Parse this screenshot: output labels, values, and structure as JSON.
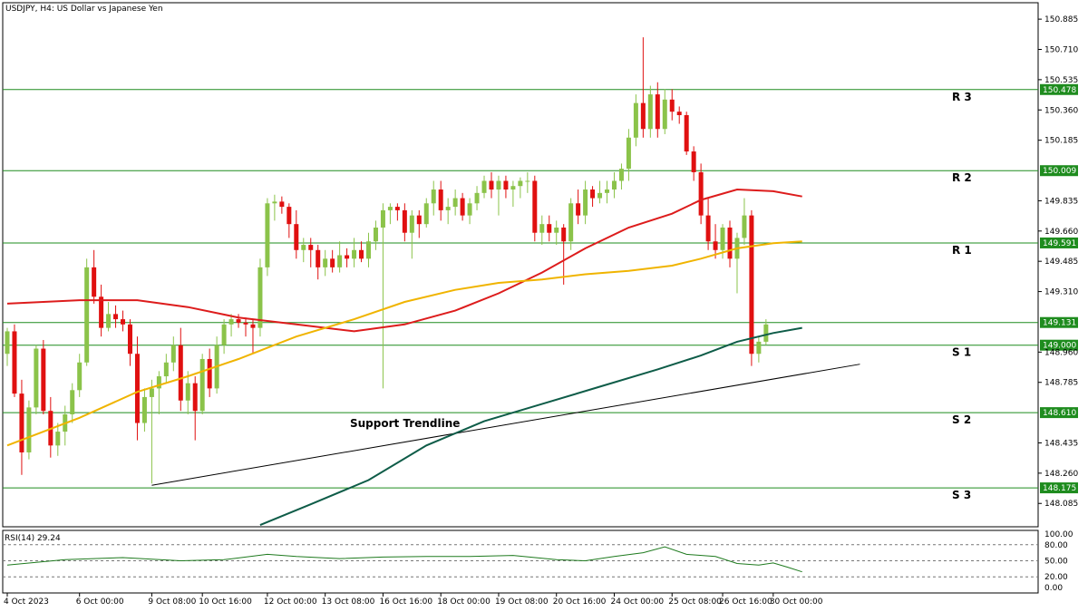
{
  "header": {
    "symbol_text": "USDJPY, H4:  US Dollar vs Japanese Yen"
  },
  "rsi": {
    "label": "RSI(14) 29.24",
    "ticks": [
      "100.00",
      "80.00",
      "50.00",
      "20.00",
      "0.00"
    ]
  },
  "price_ticks": [
    "150.885",
    "150.710",
    "150.535",
    "150.360",
    "150.185",
    "149.835",
    "149.660",
    "149.485",
    "149.310",
    "148.960",
    "148.785",
    "148.435",
    "148.260",
    "148.085"
  ],
  "time_ticks": [
    "4 Oct 2023",
    "6 Oct 00:00",
    "9 Oct 08:00",
    "10 Oct 16:00",
    "12 Oct 00:00",
    "13 Oct 08:00",
    "16 Oct 16:00",
    "18 Oct 00:00",
    "19 Oct 08:00",
    "20 Oct 16:00",
    "24 Oct 00:00",
    "25 Oct 08:00",
    "26 Oct 16:00",
    "30 Oct 00:00"
  ],
  "annotation": "Support Trendline",
  "colors": {
    "bull": "#8bc34a",
    "bear": "#e01010",
    "level": "#1e8c1e",
    "ma_fast": "#dd1c1c",
    "ma_mid": "#f0b400",
    "ma_slow": "#0e5c48"
  },
  "chart_data": {
    "type": "candlestick",
    "title": "USDJPY, H4:  US Dollar vs Japanese Yen",
    "ylim": [
      147.95,
      150.98
    ],
    "levels": [
      {
        "name": "R 3",
        "value": 150.478
      },
      {
        "name": "R 2",
        "value": 150.009
      },
      {
        "name": "R 1",
        "value": 149.591
      },
      {
        "name": "",
        "value": 149.131
      },
      {
        "name": "S 1",
        "value": 149.0
      },
      {
        "name": "S 2",
        "value": 148.61
      },
      {
        "name": "S 3",
        "value": 148.175
      }
    ],
    "level_labels": [
      "150.478",
      "150.009",
      "149.591",
      "149.131",
      "149.000",
      "148.610",
      "148.175"
    ],
    "trendline": {
      "start": {
        "i": 20,
        "value": 148.19
      },
      "end": {
        "i": 118,
        "value": 148.89
      }
    },
    "ohlc": [
      [
        148.95,
        149.1,
        148.88,
        149.08
      ],
      [
        149.08,
        149.12,
        148.7,
        148.72
      ],
      [
        148.72,
        148.8,
        148.25,
        148.38
      ],
      [
        148.38,
        148.68,
        148.34,
        148.64
      ],
      [
        148.64,
        149.0,
        148.6,
        148.98
      ],
      [
        148.98,
        149.03,
        148.6,
        148.62
      ],
      [
        148.62,
        148.7,
        148.35,
        148.42
      ],
      [
        148.42,
        148.55,
        148.36,
        148.5
      ],
      [
        148.5,
        148.65,
        148.42,
        148.6
      ],
      [
        148.6,
        148.78,
        148.55,
        148.74
      ],
      [
        148.74,
        148.95,
        148.7,
        148.9
      ],
      [
        148.9,
        149.5,
        148.88,
        149.45
      ],
      [
        149.45,
        149.55,
        149.24,
        149.28
      ],
      [
        149.28,
        149.35,
        149.05,
        149.1
      ],
      [
        149.1,
        149.25,
        149.08,
        149.18
      ],
      [
        149.18,
        149.23,
        149.1,
        149.15
      ],
      [
        149.15,
        149.2,
        149.08,
        149.12
      ],
      [
        149.12,
        149.15,
        148.88,
        148.95
      ],
      [
        148.95,
        149.05,
        148.45,
        148.55
      ],
      [
        148.55,
        148.75,
        148.5,
        148.7
      ],
      [
        148.7,
        148.8,
        148.2,
        148.75
      ],
      [
        148.75,
        148.85,
        148.6,
        148.82
      ],
      [
        148.82,
        148.95,
        148.78,
        148.9
      ],
      [
        148.9,
        149.05,
        148.85,
        149.0
      ],
      [
        149.0,
        149.1,
        148.62,
        148.68
      ],
      [
        148.68,
        148.85,
        148.6,
        148.78
      ],
      [
        148.78,
        148.82,
        148.45,
        148.62
      ],
      [
        148.62,
        148.95,
        148.6,
        148.92
      ],
      [
        148.92,
        148.98,
        148.7,
        148.75
      ],
      [
        148.75,
        149.05,
        148.72,
        149.0
      ],
      [
        149.0,
        149.15,
        148.95,
        149.12
      ],
      [
        149.12,
        149.18,
        149.05,
        149.15
      ],
      [
        149.15,
        149.18,
        149.1,
        149.13
      ],
      [
        149.13,
        149.16,
        149.05,
        149.12
      ],
      [
        149.12,
        149.15,
        148.95,
        149.1
      ],
      [
        149.1,
        149.5,
        149.05,
        149.45
      ],
      [
        149.45,
        149.85,
        149.4,
        149.82
      ],
      [
        149.82,
        149.87,
        149.72,
        149.83
      ],
      [
        149.83,
        149.86,
        149.76,
        149.8
      ],
      [
        149.8,
        149.82,
        149.62,
        149.7
      ],
      [
        149.7,
        149.78,
        149.5,
        149.55
      ],
      [
        149.55,
        149.62,
        149.48,
        149.58
      ],
      [
        149.58,
        149.62,
        149.45,
        149.55
      ],
      [
        149.55,
        149.58,
        149.38,
        149.45
      ],
      [
        149.45,
        149.55,
        149.4,
        149.5
      ],
      [
        149.5,
        149.55,
        149.42,
        149.45
      ],
      [
        149.45,
        149.6,
        149.42,
        149.52
      ],
      [
        149.52,
        149.56,
        149.45,
        149.5
      ],
      [
        149.5,
        149.62,
        149.45,
        149.55
      ],
      [
        149.55,
        149.6,
        149.48,
        149.5
      ],
      [
        149.5,
        149.65,
        149.45,
        149.6
      ],
      [
        149.6,
        149.72,
        149.55,
        149.68
      ],
      [
        149.68,
        149.82,
        148.75,
        149.78
      ],
      [
        149.78,
        149.82,
        149.7,
        149.8
      ],
      [
        149.8,
        149.82,
        149.72,
        149.78
      ],
      [
        149.78,
        149.82,
        149.6,
        149.65
      ],
      [
        149.65,
        149.78,
        149.5,
        149.75
      ],
      [
        149.75,
        149.78,
        149.62,
        149.7
      ],
      [
        149.7,
        149.85,
        149.68,
        149.82
      ],
      [
        149.82,
        149.95,
        149.75,
        149.9
      ],
      [
        149.9,
        149.95,
        149.72,
        149.78
      ],
      [
        149.78,
        149.85,
        149.7,
        149.8
      ],
      [
        149.8,
        149.9,
        149.75,
        149.85
      ],
      [
        149.85,
        149.88,
        149.72,
        149.75
      ],
      [
        149.75,
        149.85,
        149.7,
        149.82
      ],
      [
        149.82,
        149.92,
        149.78,
        149.88
      ],
      [
        149.88,
        149.98,
        149.85,
        149.95
      ],
      [
        149.95,
        150.0,
        149.85,
        149.9
      ],
      [
        149.9,
        149.98,
        149.75,
        149.95
      ],
      [
        149.95,
        149.98,
        149.85,
        149.9
      ],
      [
        149.9,
        149.95,
        149.8,
        149.92
      ],
      [
        149.92,
        149.97,
        149.85,
        149.95
      ],
      [
        149.95,
        150.0,
        149.88,
        149.95
      ],
      [
        149.95,
        149.98,
        149.6,
        149.65
      ],
      [
        149.65,
        149.75,
        149.58,
        149.7
      ],
      [
        149.7,
        149.75,
        149.6,
        149.65
      ],
      [
        149.65,
        149.72,
        149.58,
        149.68
      ],
      [
        149.68,
        149.7,
        149.35,
        149.6
      ],
      [
        149.6,
        149.85,
        149.55,
        149.82
      ],
      [
        149.82,
        149.9,
        149.7,
        149.75
      ],
      [
        149.75,
        149.95,
        149.7,
        149.9
      ],
      [
        149.9,
        149.92,
        149.8,
        149.85
      ],
      [
        149.85,
        149.95,
        149.82,
        149.88
      ],
      [
        149.88,
        149.95,
        149.82,
        149.9
      ],
      [
        149.9,
        150.0,
        149.85,
        149.95
      ],
      [
        149.95,
        150.05,
        149.9,
        150.02
      ],
      [
        150.02,
        150.25,
        149.95,
        150.2
      ],
      [
        150.2,
        150.45,
        150.15,
        150.4
      ],
      [
        150.4,
        150.78,
        150.2,
        150.25
      ],
      [
        150.25,
        150.5,
        150.2,
        150.45
      ],
      [
        150.45,
        150.52,
        150.2,
        150.25
      ],
      [
        150.25,
        150.48,
        150.22,
        150.42
      ],
      [
        150.42,
        150.48,
        150.3,
        150.35
      ],
      [
        150.35,
        150.38,
        150.28,
        150.33
      ],
      [
        150.33,
        150.35,
        150.1,
        150.12
      ],
      [
        150.12,
        150.15,
        149.95,
        150.0
      ],
      [
        150.0,
        150.05,
        149.7,
        149.75
      ],
      [
        149.75,
        149.85,
        149.55,
        149.6
      ],
      [
        149.6,
        149.7,
        149.5,
        149.55
      ],
      [
        149.55,
        149.7,
        149.5,
        149.68
      ],
      [
        149.68,
        149.72,
        149.45,
        149.5
      ],
      [
        149.5,
        149.65,
        149.3,
        149.62
      ],
      [
        149.62,
        149.85,
        149.58,
        149.75
      ],
      [
        149.75,
        149.78,
        148.88,
        148.95
      ],
      [
        148.95,
        149.05,
        148.9,
        149.02
      ],
      [
        149.02,
        149.15,
        149.0,
        149.12
      ]
    ],
    "moving_averages": [
      {
        "color": "#dd1c1c",
        "points": [
          [
            0,
            149.24
          ],
          [
            10,
            149.26
          ],
          [
            18,
            149.26
          ],
          [
            25,
            149.22
          ],
          [
            32,
            149.16
          ],
          [
            40,
            149.12
          ],
          [
            48,
            149.08
          ],
          [
            55,
            149.12
          ],
          [
            62,
            149.2
          ],
          [
            68,
            149.3
          ],
          [
            74,
            149.42
          ],
          [
            80,
            149.56
          ],
          [
            86,
            149.68
          ],
          [
            92,
            149.76
          ],
          [
            96,
            149.84
          ],
          [
            101,
            149.9
          ],
          [
            106,
            149.89
          ],
          [
            110,
            149.86
          ]
        ]
      },
      {
        "color": "#f0b400",
        "points": [
          [
            0,
            148.42
          ],
          [
            10,
            148.58
          ],
          [
            18,
            148.73
          ],
          [
            25,
            148.82
          ],
          [
            32,
            148.92
          ],
          [
            40,
            149.05
          ],
          [
            48,
            149.15
          ],
          [
            55,
            149.25
          ],
          [
            62,
            149.32
          ],
          [
            68,
            149.36
          ],
          [
            74,
            149.38
          ],
          [
            80,
            149.41
          ],
          [
            86,
            149.43
          ],
          [
            92,
            149.46
          ],
          [
            96,
            149.5
          ],
          [
            101,
            149.56
          ],
          [
            106,
            149.59
          ],
          [
            110,
            149.6
          ]
        ]
      },
      {
        "color": "#0e5c48",
        "points": [
          [
            35,
            147.96
          ],
          [
            42,
            148.08
          ],
          [
            50,
            148.22
          ],
          [
            58,
            148.42
          ],
          [
            66,
            148.56
          ],
          [
            74,
            148.66
          ],
          [
            82,
            148.76
          ],
          [
            90,
            148.86
          ],
          [
            96,
            148.94
          ],
          [
            101,
            149.02
          ],
          [
            106,
            149.07
          ],
          [
            110,
            149.1
          ]
        ]
      }
    ],
    "rsi": {
      "range": [
        0,
        100
      ],
      "reference_lines": [
        80,
        50,
        20
      ],
      "points": [
        [
          0,
          42
        ],
        [
          8,
          52
        ],
        [
          16,
          56
        ],
        [
          24,
          50
        ],
        [
          30,
          52
        ],
        [
          36,
          62
        ],
        [
          40,
          58
        ],
        [
          46,
          54
        ],
        [
          52,
          57
        ],
        [
          58,
          58
        ],
        [
          64,
          58
        ],
        [
          70,
          60
        ],
        [
          76,
          52
        ],
        [
          80,
          50
        ],
        [
          84,
          58
        ],
        [
          88,
          65
        ],
        [
          91,
          76
        ],
        [
          94,
          62
        ],
        [
          98,
          58
        ],
        [
          101,
          45
        ],
        [
          104,
          42
        ],
        [
          106,
          46
        ],
        [
          108,
          38
        ],
        [
          110,
          29.24
        ]
      ]
    },
    "time_ticks_index": [
      0,
      10,
      20,
      27,
      36,
      44,
      52,
      60,
      68,
      76,
      84,
      92,
      99,
      106
    ]
  }
}
